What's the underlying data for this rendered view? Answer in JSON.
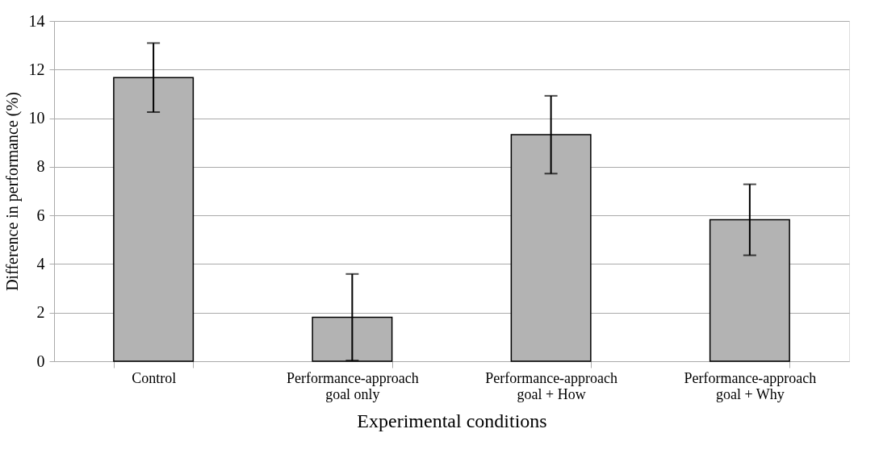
{
  "chart_data": {
    "type": "bar",
    "xlabel": "Experimental conditions",
    "ylabel": "Difference in performance (%)",
    "categories": [
      "Control",
      "Performance-approach\ngoal only",
      "Performance-approach\ngoal + How",
      "Performance-approach\ngoal + Why"
    ],
    "values": [
      11.67,
      1.81,
      9.32,
      5.82
    ],
    "errors": [
      1.42,
      1.78,
      1.6,
      1.46
    ],
    "color": "#b3b3b3",
    "ylim": [
      0,
      14
    ],
    "yticks": [
      0,
      2,
      4,
      6,
      8,
      10,
      12,
      14
    ],
    "grid": "y"
  }
}
